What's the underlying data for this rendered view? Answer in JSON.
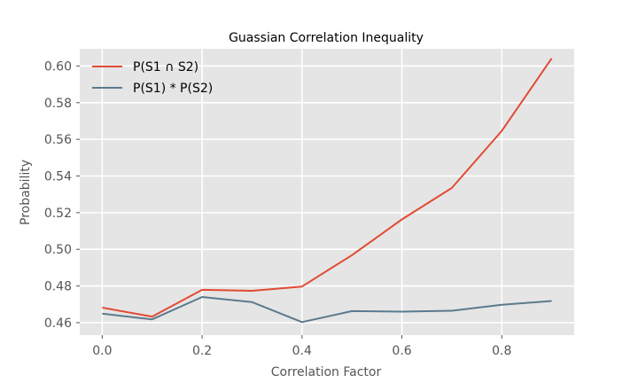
{
  "chart_data": {
    "type": "line",
    "title": "Guassian Correlation Inequality",
    "xlabel": "Correlation Factor",
    "ylabel": "Probability",
    "x": [
      0.0,
      0.1,
      0.2,
      0.3,
      0.4,
      0.5,
      0.6,
      0.7,
      0.8,
      0.9
    ],
    "xlim": [
      -0.045,
      0.945
    ],
    "ylim": [
      0.4532,
      0.6094
    ],
    "xticks": [
      "0.0",
      "0.2",
      "0.4",
      "0.6",
      "0.8"
    ],
    "xtick_values": [
      0.0,
      0.2,
      0.4,
      0.6,
      0.8
    ],
    "yticks": [
      "0.46",
      "0.48",
      "0.50",
      "0.52",
      "0.54",
      "0.56",
      "0.58",
      "0.60"
    ],
    "ytick_values": [
      0.46,
      0.48,
      0.5,
      0.52,
      0.54,
      0.56,
      0.58,
      0.6
    ],
    "grid": true,
    "legend_position": "top-left",
    "background_color": "#e5e5e5",
    "series": [
      {
        "name": "P(S1 ∩ S2)",
        "color": "#e24a33",
        "values": [
          0.4682,
          0.4633,
          0.4779,
          0.4774,
          0.4797,
          0.4968,
          0.5163,
          0.5335,
          0.5646,
          0.6042
        ]
      },
      {
        "name": "P(S1) * P(S2)",
        "color": "#5c7a8e",
        "values": [
          0.4649,
          0.4618,
          0.474,
          0.4712,
          0.4603,
          0.4663,
          0.466,
          0.4665,
          0.4698,
          0.4718
        ]
      }
    ]
  }
}
